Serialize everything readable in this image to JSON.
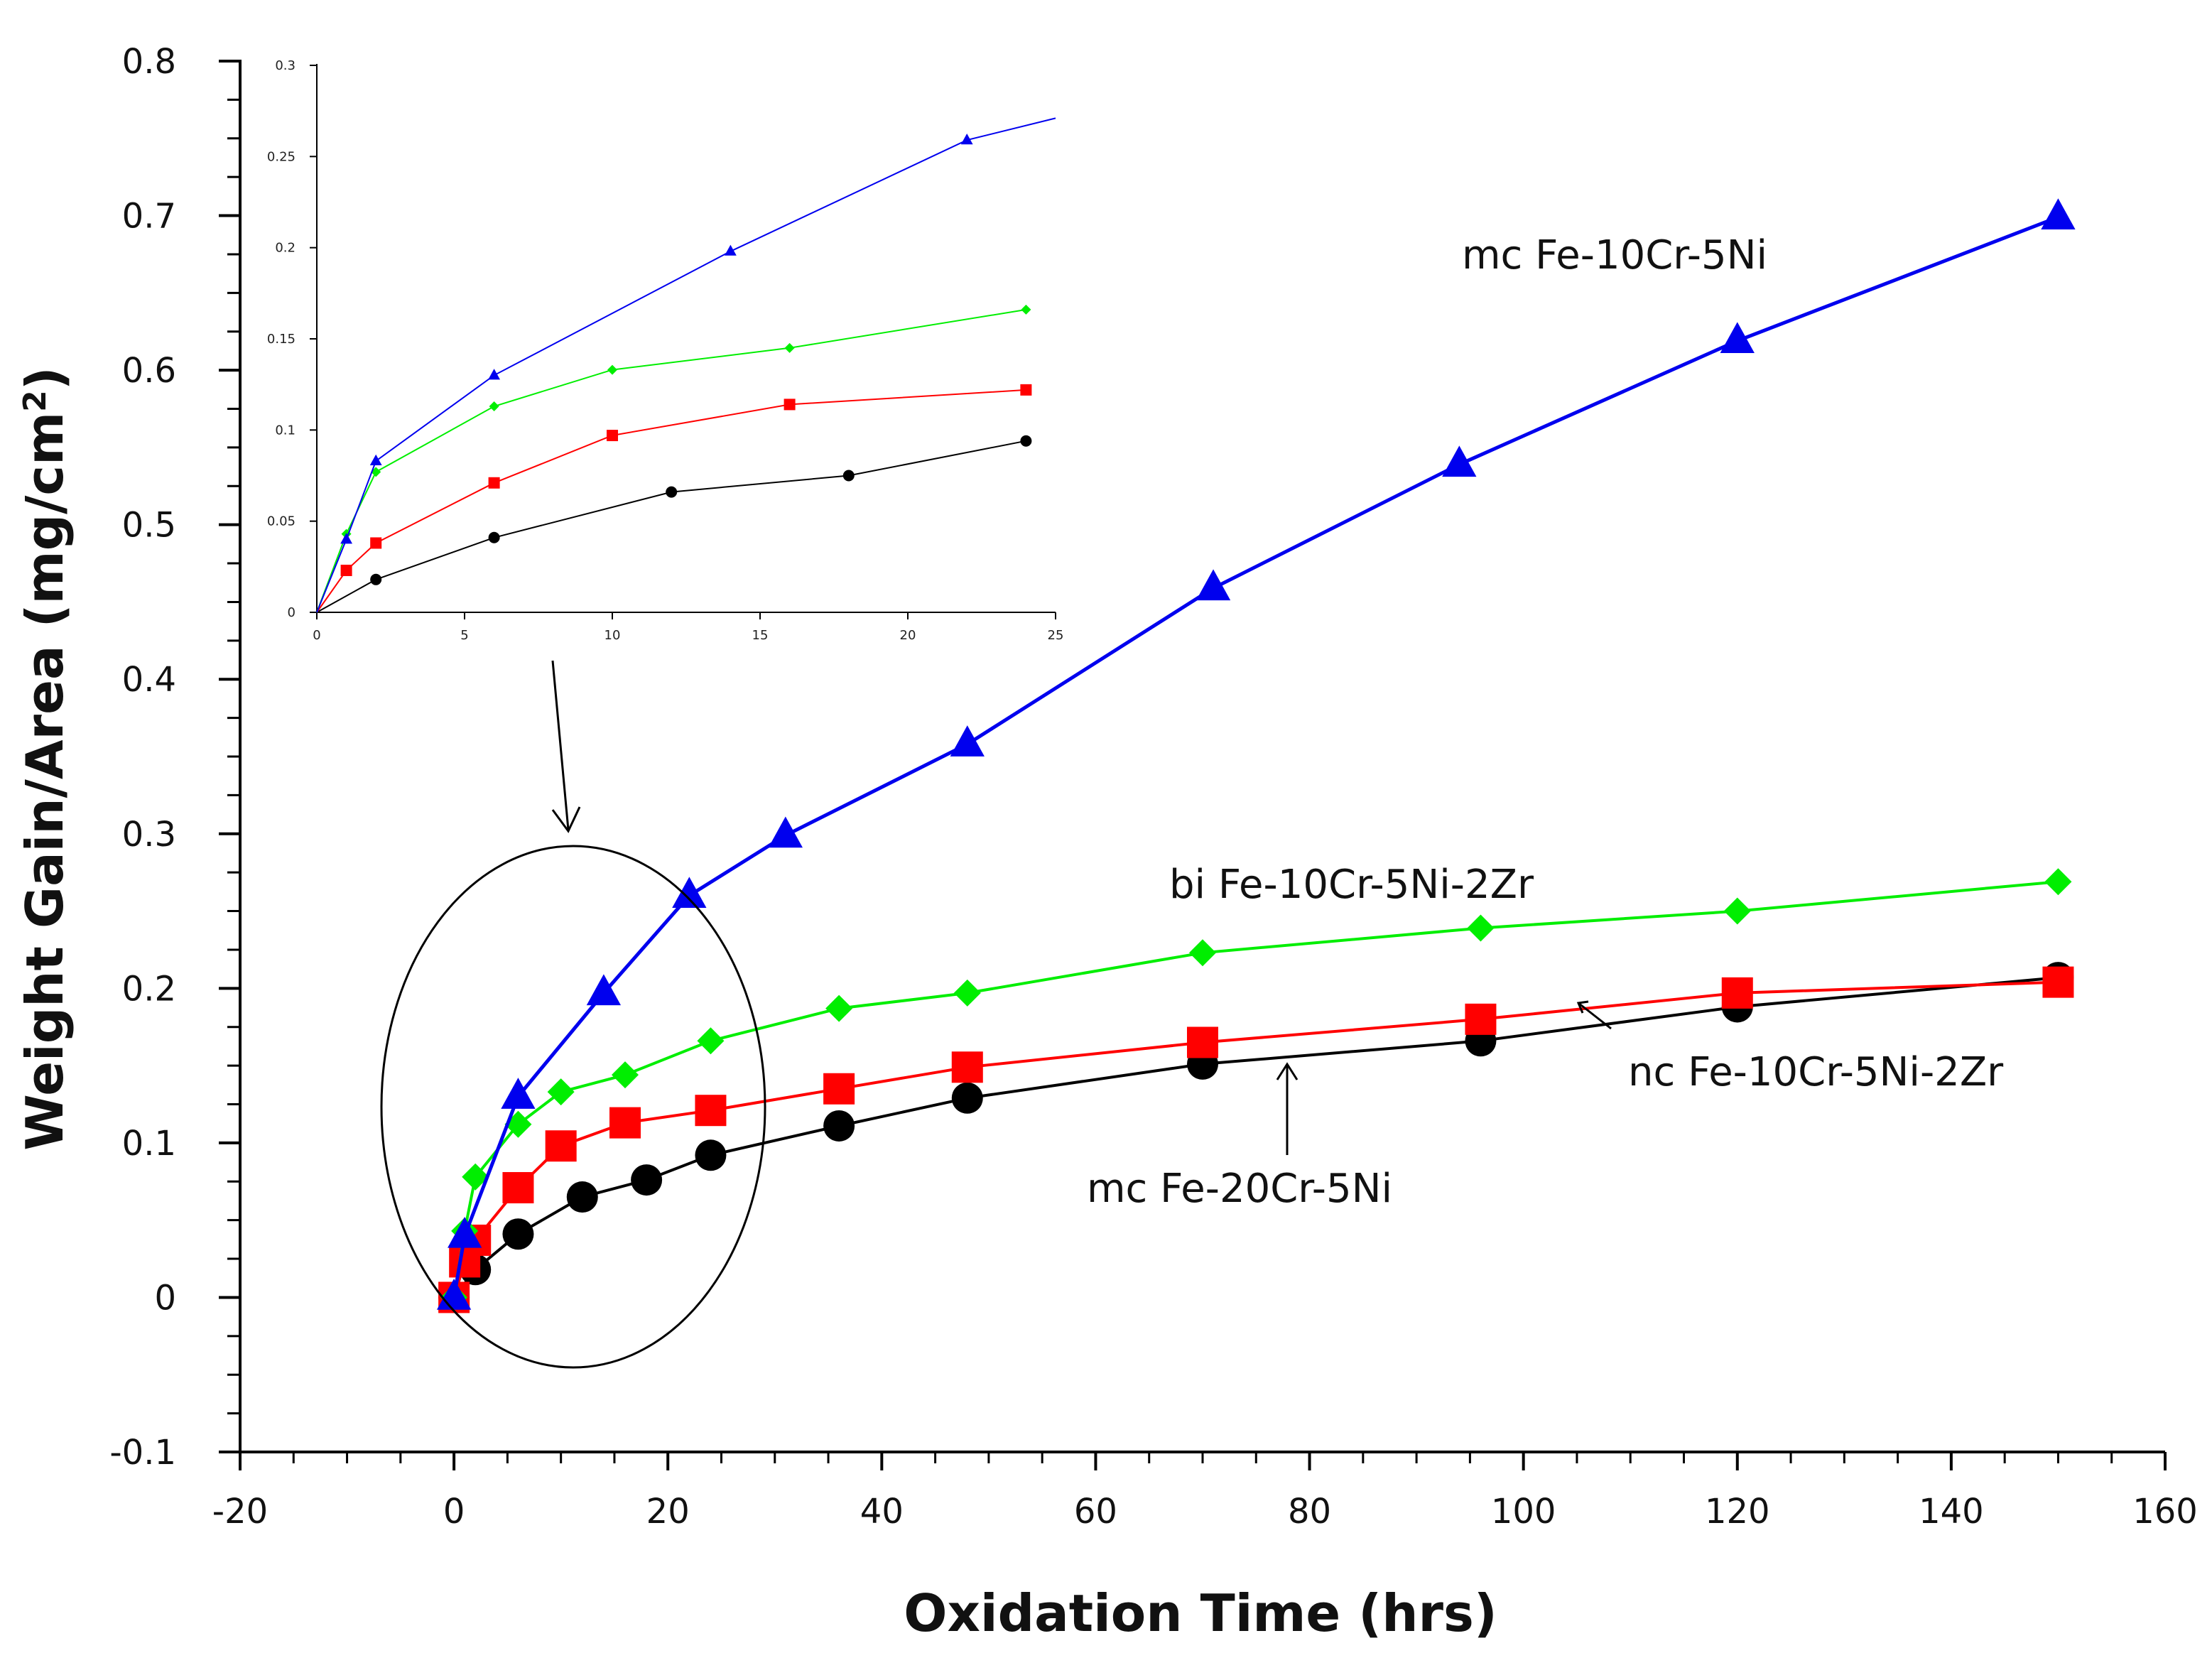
{
  "chart_data": {
    "type": "line",
    "xlabel": "Oxidation Time (hrs)",
    "ylabel_main": "Weight Gain/Area (mg/cm",
    "ylabel_sup": "2",
    "ylabel_end": ")",
    "xlim": [
      -20,
      160
    ],
    "ylim": [
      -0.1,
      0.8
    ],
    "x_ticks": [
      -20,
      0,
      20,
      40,
      60,
      80,
      100,
      120,
      140,
      160
    ],
    "x_tick_labels": [
      "-20",
      "0",
      "20",
      "40",
      "60",
      "80",
      "100",
      "120",
      "140",
      "160"
    ],
    "y_ticks": [
      -0.1,
      0,
      0.1,
      0.2,
      0.3,
      0.4,
      0.5,
      0.6,
      0.7,
      0.8
    ],
    "y_tick_labels": [
      "-0.1",
      "0",
      "0.1",
      "0.2",
      "0.3",
      "0.4",
      "0.5",
      "0.6",
      "0.7",
      "0.8"
    ],
    "series": [
      {
        "name": "mc Fe-20Cr-5Ni",
        "color": "#000000",
        "marker": "circle",
        "x": [
          0,
          2,
          6,
          12,
          18,
          24,
          36,
          48,
          70,
          96,
          120,
          150
        ],
        "y": [
          0,
          0.018,
          0.041,
          0.065,
          0.076,
          0.092,
          0.111,
          0.129,
          0.151,
          0.166,
          0.188,
          0.207
        ]
      },
      {
        "name": "nc Fe-10Cr-5Ni-2Zr",
        "color": "#ff0000",
        "marker": "square",
        "x": [
          0,
          1,
          2,
          6,
          10,
          16,
          24,
          36,
          48,
          70,
          96,
          120,
          150
        ],
        "y": [
          0,
          0.023,
          0.037,
          0.071,
          0.098,
          0.113,
          0.121,
          0.135,
          0.149,
          0.165,
          0.18,
          0.197,
          0.204
        ]
      },
      {
        "name": "bi Fe-10Cr-5Ni-2Zr",
        "color": "#00ee00",
        "marker": "diamond",
        "x": [
          0,
          1,
          2,
          6,
          10,
          16,
          24,
          36,
          48,
          70,
          96,
          120,
          150
        ],
        "y": [
          0,
          0.043,
          0.078,
          0.112,
          0.133,
          0.144,
          0.166,
          0.187,
          0.197,
          0.223,
          0.239,
          0.25,
          0.269
        ]
      },
      {
        "name": "mc Fe-10Cr-5Ni",
        "color": "#0000ee",
        "marker": "triangle",
        "x": [
          0,
          1,
          6,
          14,
          22,
          31,
          48,
          71,
          94,
          120,
          150
        ],
        "y": [
          0,
          0.04,
          0.13,
          0.197,
          0.26,
          0.299,
          0.358,
          0.459,
          0.539,
          0.619,
          0.699
        ]
      }
    ],
    "annotations": [
      "mc Fe-10Cr-5Ni",
      "bi Fe-10Cr-5Ni-2Zr",
      "nc Fe-10Cr-5Ni-2Zr",
      "mc Fe-20Cr-5Ni"
    ],
    "inset": {
      "xlim": [
        0,
        25
      ],
      "ylim": [
        0,
        0.3
      ],
      "x_tick_labels": [
        "0",
        "5",
        "10",
        "15",
        "20",
        "25"
      ],
      "y_tick_labels": [
        "0",
        "0.05",
        "0.1",
        "0.15",
        "0.2",
        "0.25",
        "0.3"
      ],
      "series": [
        {
          "color": "#000000",
          "marker": "circle",
          "x": [
            0,
            2,
            6,
            12,
            18,
            24
          ],
          "y": [
            0,
            0.018,
            0.041,
            0.066,
            0.075,
            0.094
          ]
        },
        {
          "color": "#ff0000",
          "marker": "square",
          "x": [
            0,
            1,
            2,
            6,
            10,
            16,
            24
          ],
          "y": [
            0,
            0.023,
            0.038,
            0.071,
            0.097,
            0.114,
            0.122
          ]
        },
        {
          "color": "#00ee00",
          "marker": "diamond",
          "x": [
            0,
            1,
            2,
            6,
            10,
            16,
            24
          ],
          "y": [
            0,
            0.043,
            0.077,
            0.113,
            0.133,
            0.145,
            0.166
          ]
        },
        {
          "color": "#0000ee",
          "marker": "triangle",
          "x": [
            0,
            1,
            2,
            6,
            14,
            22,
            25
          ],
          "y": [
            0,
            0.04,
            0.083,
            0.13,
            0.198,
            0.259,
            0.271
          ]
        }
      ]
    }
  }
}
